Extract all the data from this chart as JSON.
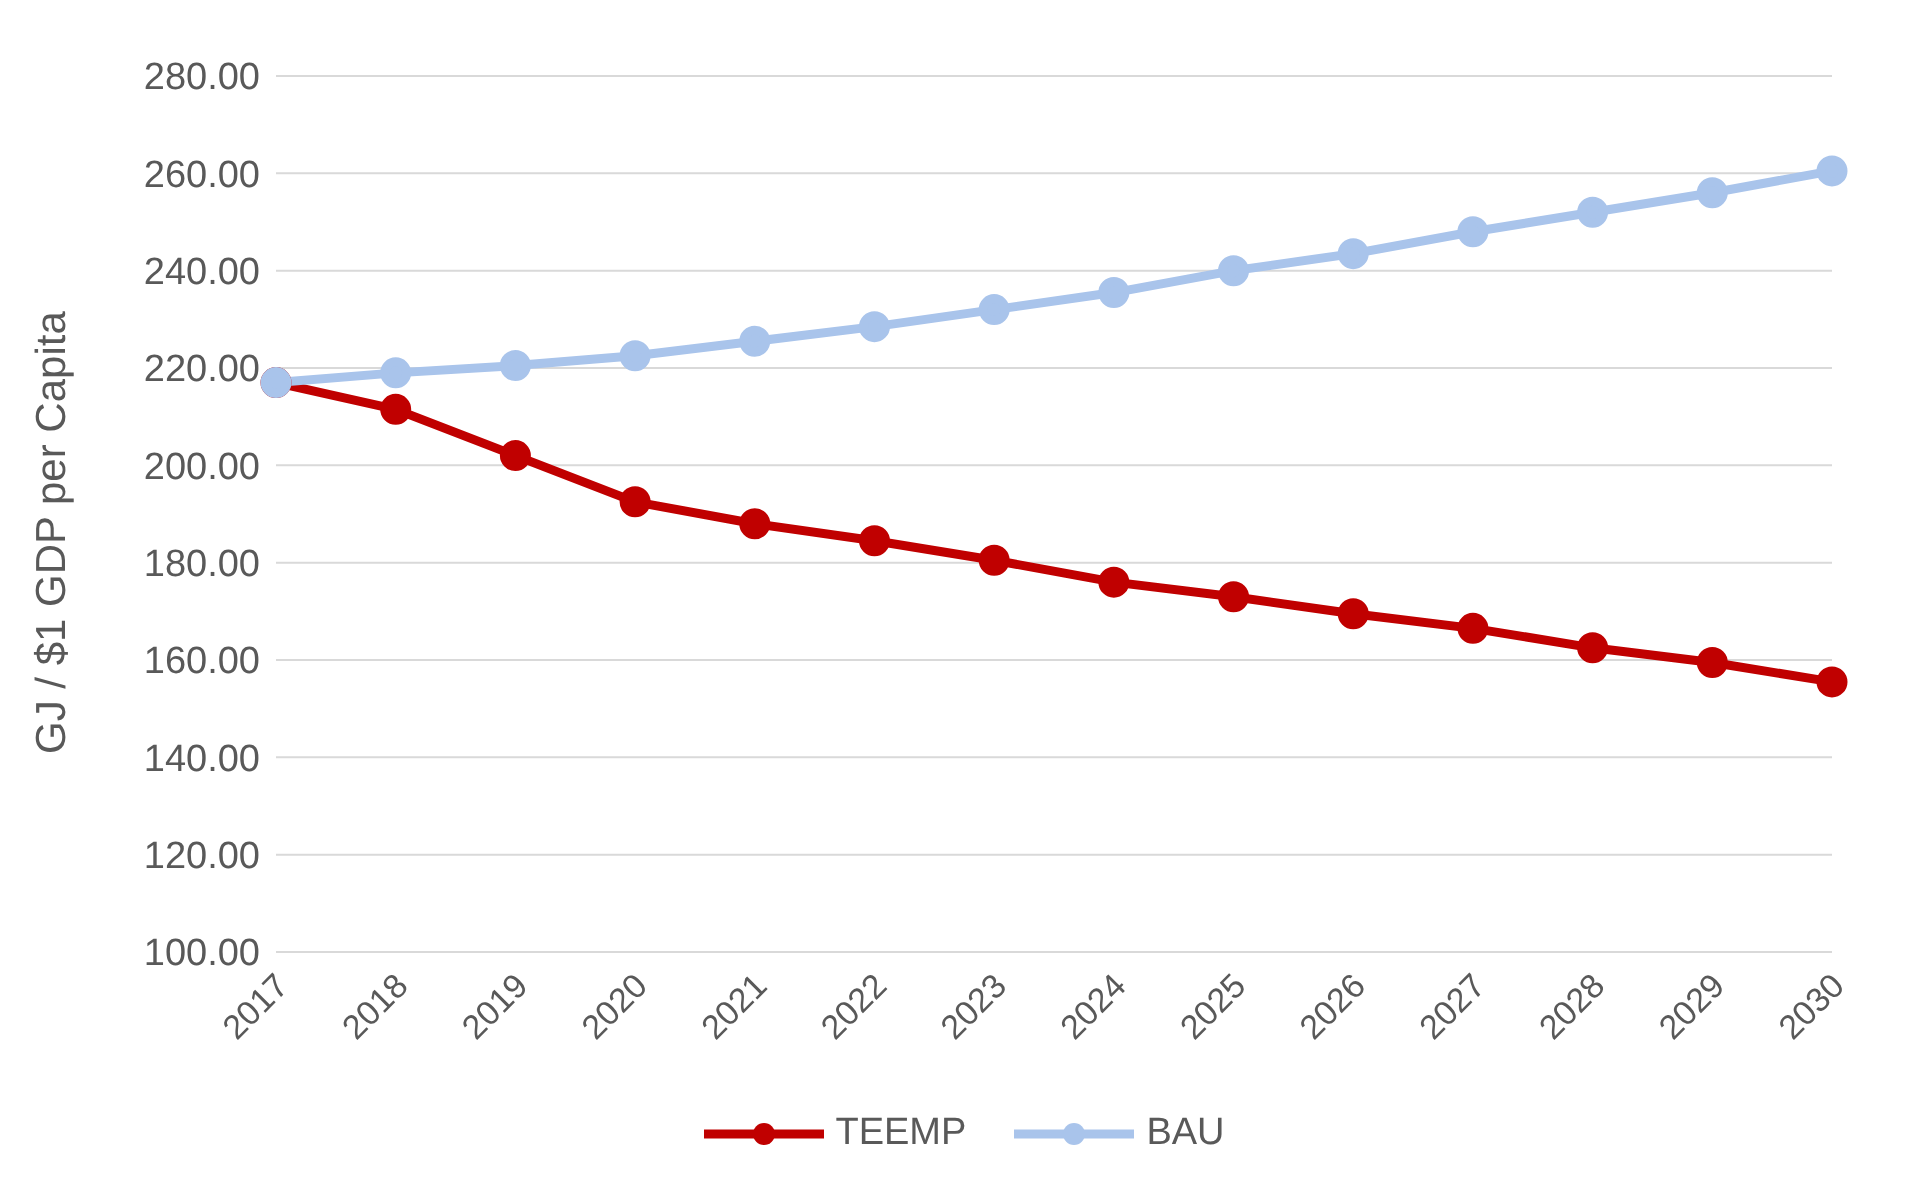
{
  "chart_data": {
    "type": "line",
    "ylabel": "GJ / $1 GDP per Capita",
    "categories": [
      "2017",
      "2018",
      "2019",
      "2020",
      "2021",
      "2022",
      "2023",
      "2024",
      "2025",
      "2026",
      "2027",
      "2028",
      "2029",
      "2030"
    ],
    "series": [
      {
        "name": "TEEMP",
        "color": "#c00000",
        "values": [
          217,
          211.5,
          202,
          192.5,
          188,
          184.5,
          180.5,
          176,
          173,
          169.5,
          166.5,
          162.5,
          159.5,
          155.5
        ]
      },
      {
        "name": "BAU",
        "color": "#a9c4eb",
        "values": [
          217,
          219,
          220.5,
          222.5,
          225.5,
          228.5,
          232,
          235.5,
          240,
          243.5,
          248,
          252,
          256,
          260.5
        ]
      }
    ],
    "ylim": [
      100,
      280
    ],
    "yticks": [
      {
        "value": 100,
        "label": "100.00"
      },
      {
        "value": 120,
        "label": "120.00"
      },
      {
        "value": 140,
        "label": "140.00"
      },
      {
        "value": 160,
        "label": "160.00"
      },
      {
        "value": 180,
        "label": "180.00"
      },
      {
        "value": 200,
        "label": "200.00"
      },
      {
        "value": 220,
        "label": "220.00"
      },
      {
        "value": 240,
        "label": "240.00"
      },
      {
        "value": 260,
        "label": "260.00"
      },
      {
        "value": 280,
        "label": "280.00"
      }
    ],
    "grid": "y",
    "legend": "bottom",
    "marker": "circle",
    "line_style": "solid"
  }
}
